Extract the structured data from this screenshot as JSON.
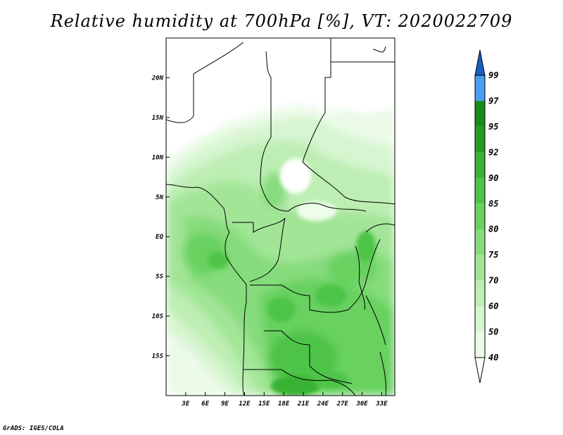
{
  "title": "Relative humidity at 700hPa [%], VT: 2020022709",
  "footer": "GrADS: IGES/COLA",
  "map": {
    "lon_range": [
      0,
      35
    ],
    "lat_range": [
      -20,
      25
    ],
    "x_ticks": [
      {
        "lon": 3,
        "label": "3E"
      },
      {
        "lon": 6,
        "label": "6E"
      },
      {
        "lon": 9,
        "label": "9E"
      },
      {
        "lon": 12,
        "label": "12E"
      },
      {
        "lon": 15,
        "label": "15E"
      },
      {
        "lon": 18,
        "label": "18E"
      },
      {
        "lon": 21,
        "label": "21E"
      },
      {
        "lon": 24,
        "label": "24E"
      },
      {
        "lon": 27,
        "label": "27E"
      },
      {
        "lon": 30,
        "label": "30E"
      },
      {
        "lon": 33,
        "label": "33E"
      }
    ],
    "y_ticks": [
      {
        "lat": 20,
        "label": "20N"
      },
      {
        "lat": 15,
        "label": "15N"
      },
      {
        "lat": 10,
        "label": "10N"
      },
      {
        "lat": 5,
        "label": "5N"
      },
      {
        "lat": 0,
        "label": "EQ"
      },
      {
        "lat": -5,
        "label": "5S"
      },
      {
        "lat": -10,
        "label": "10S"
      },
      {
        "lat": -15,
        "label": "15S"
      }
    ]
  },
  "colorbar": {
    "levels": [
      {
        "label": "40",
        "color": "#ebfbe8"
      },
      {
        "label": "50",
        "color": "#d6f5d0"
      },
      {
        "label": "60",
        "color": "#bdeeb3"
      },
      {
        "label": "70",
        "color": "#a2e597"
      },
      {
        "label": "75",
        "color": "#86dc7b"
      },
      {
        "label": "80",
        "color": "#68d160"
      },
      {
        "label": "85",
        "color": "#4ec446"
      },
      {
        "label": "90",
        "color": "#38b232"
      },
      {
        "label": "92",
        "color": "#249d22"
      },
      {
        "label": "95",
        "color": "#1a8a18"
      },
      {
        "label": "97",
        "color": "#4a9ef0"
      },
      {
        "label": "99",
        "color": "#2277dd"
      }
    ],
    "top_color": "#1a5fc0"
  }
}
